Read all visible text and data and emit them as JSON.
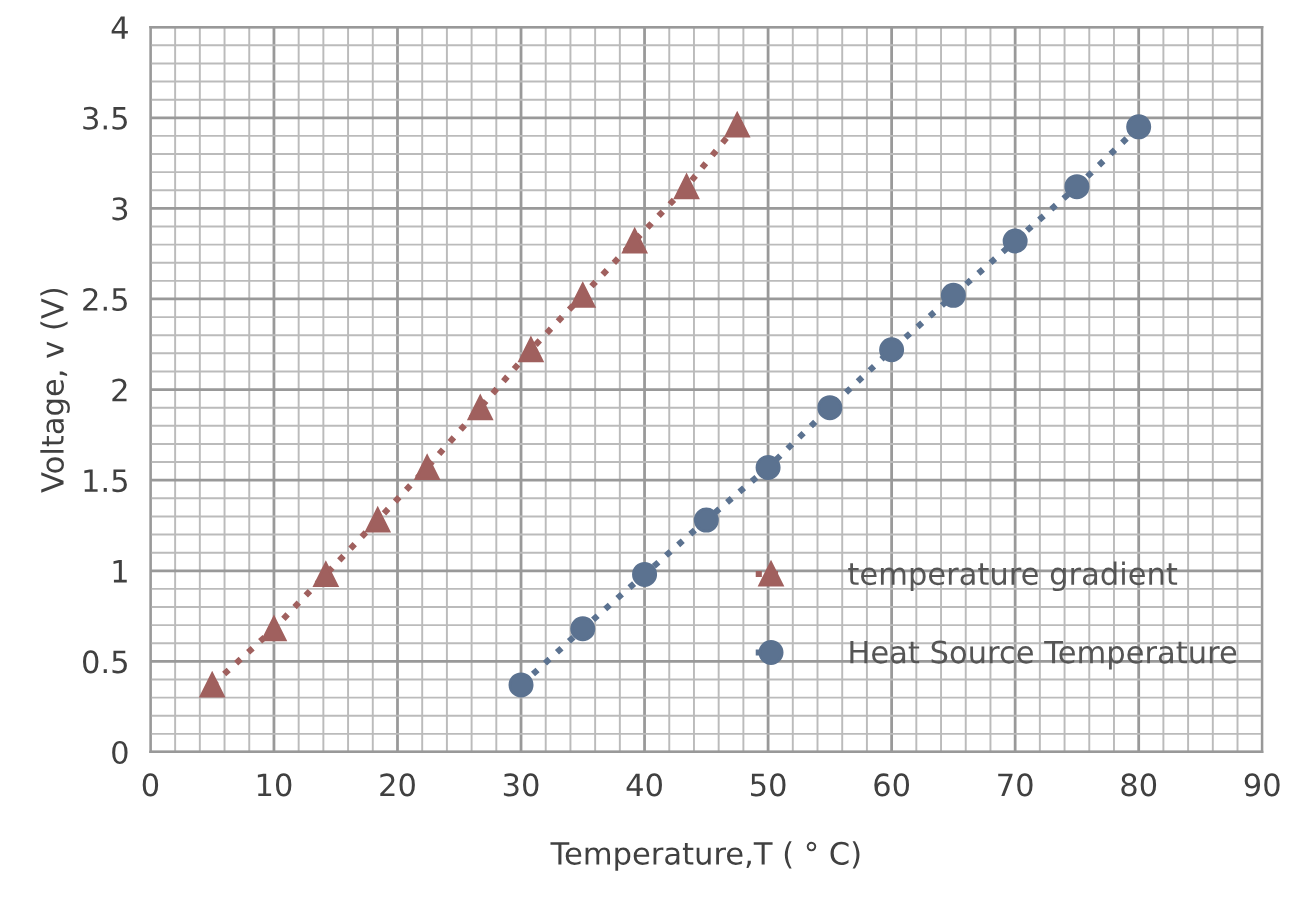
{
  "chart_data": {
    "type": "line",
    "xlabel": "Temperature,T ( ° C)",
    "ylabel": "Voltage, v (V)",
    "xlim": [
      0,
      90
    ],
    "xticks": [
      0,
      10,
      20,
      30,
      40,
      50,
      60,
      70,
      80,
      90
    ],
    "ylim": [
      0,
      4
    ],
    "yticks": [
      0,
      {
        "value": 0.5,
        "label": "0.5"
      },
      1,
      {
        "value": 1.5,
        "label": "1.5"
      },
      2,
      {
        "value": 2.5,
        "label": "2.5"
      },
      3,
      {
        "value": 3.5,
        "label": "3.5"
      },
      4
    ],
    "grid": true,
    "legend": "lower right",
    "line_style": "dotted",
    "series": [
      {
        "name": "temperature gradient",
        "color": "#a0605e",
        "marker": "triangle",
        "x": [
          5,
          10,
          14.2,
          18.4,
          22.4,
          26.7,
          30.8,
          35,
          39.2,
          43.4,
          47.5
        ],
        "values": [
          0.37,
          0.68,
          0.98,
          1.28,
          1.57,
          1.9,
          2.22,
          2.52,
          2.82,
          3.12,
          3.46
        ]
      },
      {
        "name": "Heat Source Temperature",
        "color": "#5b7290",
        "marker": "circle",
        "x": [
          30,
          35,
          40,
          45,
          50,
          55,
          60,
          65,
          70,
          75,
          80
        ],
        "values": [
          0.37,
          0.68,
          0.98,
          1.28,
          1.57,
          1.9,
          2.22,
          2.52,
          2.82,
          3.12,
          3.45
        ]
      }
    ]
  }
}
